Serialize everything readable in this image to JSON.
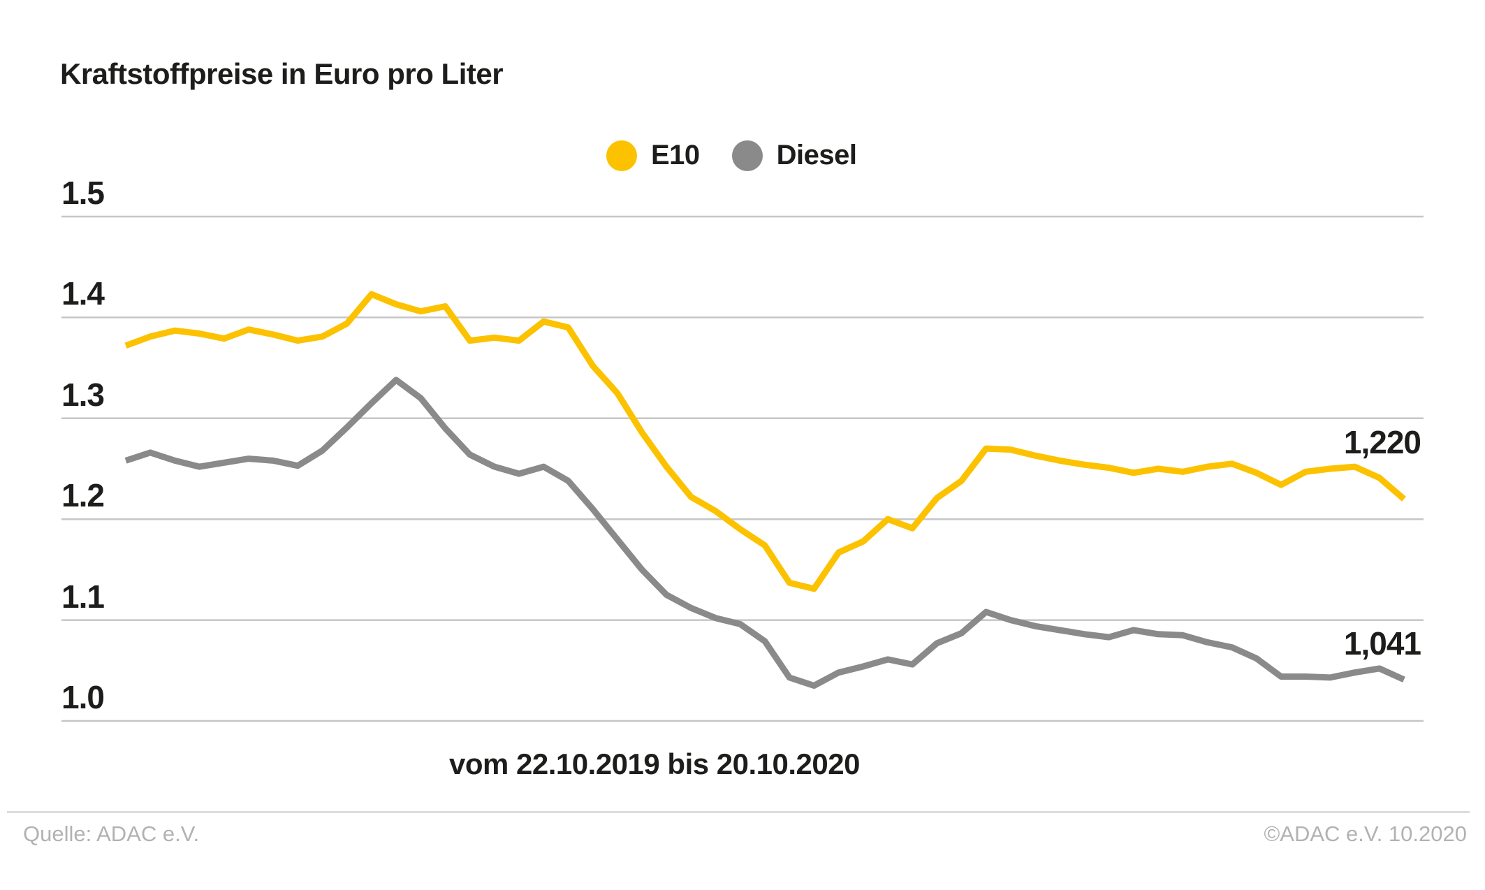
{
  "header": {
    "title": "Kraftstoffpreise in Euro pro Liter"
  },
  "footer": {
    "source": "Quelle: ADAC e.V.",
    "copyright": "©ADAC e.V. 10.2020"
  },
  "colors": {
    "e10": "#fcc200",
    "diesel": "#8a8a8a",
    "text": "#1d1d1b",
    "grid": "#c6c6c6",
    "footer_text": "#b2b2b2"
  },
  "chart_data": {
    "type": "line",
    "title": "Kraftstoffpreise in Euro pro Liter",
    "xlabel": "vom 22.10.2019 bis 20.10.2020",
    "ylabel": "Euro pro Liter",
    "x_start": "22.10.2019",
    "x_end": "20.10.2020",
    "x_interval": "weekly",
    "ylim": [
      1.0,
      1.5
    ],
    "grid": true,
    "legend_position": "top-center",
    "grid_color": "#c6c6c6",
    "yticks": [
      {
        "label": "1.5",
        "value": 1.5
      },
      {
        "label": "1.4",
        "value": 1.4
      },
      {
        "label": "1.3",
        "value": 1.3
      },
      {
        "label": "1.2",
        "value": 1.2
      },
      {
        "label": "1.1",
        "value": 1.1
      },
      {
        "label": "1.0",
        "value": 1.0
      }
    ],
    "series": [
      {
        "name": "E10",
        "color": "#fcc200",
        "values": [
          1.372,
          1.381,
          1.387,
          1.384,
          1.379,
          1.388,
          1.383,
          1.377,
          1.381,
          1.394,
          1.423,
          1.413,
          1.406,
          1.411,
          1.377,
          1.38,
          1.377,
          1.396,
          1.39,
          1.352,
          1.325,
          1.286,
          1.252,
          1.222,
          1.208,
          1.19,
          1.174,
          1.137,
          1.131,
          1.167,
          1.178,
          1.2,
          1.191,
          1.221,
          1.238,
          1.27,
          1.269,
          1.263,
          1.258,
          1.254,
          1.251,
          1.246,
          1.25,
          1.247,
          1.252,
          1.255,
          1.246,
          1.234,
          1.247,
          1.25,
          1.252,
          1.241,
          1.22
        ]
      },
      {
        "name": "Diesel",
        "color": "#8a8a8a",
        "values": [
          1.258,
          1.266,
          1.258,
          1.252,
          1.256,
          1.26,
          1.258,
          1.253,
          1.268,
          1.291,
          1.315,
          1.338,
          1.32,
          1.29,
          1.264,
          1.252,
          1.245,
          1.252,
          1.238,
          1.21,
          1.18,
          1.15,
          1.125,
          1.112,
          1.102,
          1.096,
          1.079,
          1.043,
          1.035,
          1.048,
          1.054,
          1.061,
          1.056,
          1.077,
          1.087,
          1.108,
          1.1,
          1.094,
          1.09,
          1.086,
          1.083,
          1.09,
          1.086,
          1.085,
          1.078,
          1.073,
          1.062,
          1.044,
          1.044,
          1.043,
          1.048,
          1.052,
          1.041
        ]
      }
    ],
    "annotations": [
      {
        "series": "E10",
        "text": "1,220",
        "position": "line-end"
      },
      {
        "series": "Diesel",
        "text": "1,041",
        "position": "line-end"
      }
    ]
  }
}
